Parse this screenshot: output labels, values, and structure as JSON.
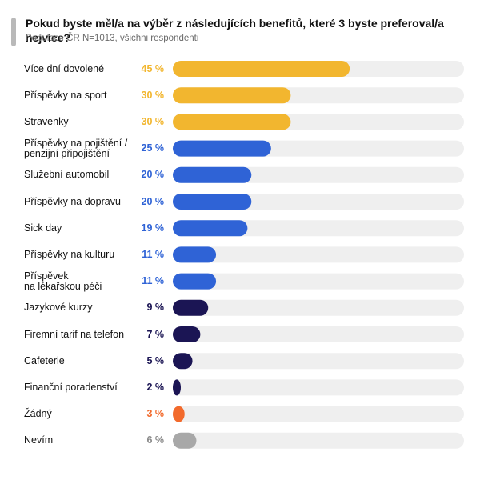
{
  "header": {
    "title": "Pokud byste měl/a na výběr z následujících benefitů, které 3 byste preferoval/a nejvíce?",
    "subtitle": "Populace ČR N=1013, všichni respondenti"
  },
  "colors": {
    "track": "#efefef",
    "yellow": "#f2b62f",
    "blue": "#2f63d6",
    "navy": "#1b1554",
    "orange": "#f26a2c",
    "gray": "#a8a8a8"
  },
  "chart_data": {
    "type": "bar",
    "orientation": "horizontal",
    "xlim": [
      0,
      100
    ],
    "categories": [
      "Více dní dovolené",
      "Příspěvky na sport",
      "Stravenky",
      "Příspěvky na pojištění / penzijní připojištění",
      "Služební automobil",
      "Příspěvky na dopravu",
      "Sick day",
      "Příspěvky na kulturu",
      "Příspěvek na lékařskou péči",
      "Jazykové kurzy",
      "Firemní tarif na telefon",
      "Cafeterie",
      "Finanční poradenství",
      "Žádný",
      "Nevím"
    ],
    "label_lines": [
      [
        "Více dní dovolené"
      ],
      [
        "Příspěvky na sport"
      ],
      [
        "Stravenky"
      ],
      [
        "Příspěvky na pojištění /",
        "penzijní připojištění"
      ],
      [
        "Služební automobil"
      ],
      [
        "Příspěvky na dopravu"
      ],
      [
        "Sick day"
      ],
      [
        "Příspěvky na kulturu"
      ],
      [
        "Příspěvek",
        "na lékařskou péči"
      ],
      [
        "Jazykové kurzy"
      ],
      [
        "Firemní tarif na telefon"
      ],
      [
        "Cafeterie"
      ],
      [
        "Finanční poradenství"
      ],
      [
        "Žádný"
      ],
      [
        "Nevím"
      ]
    ],
    "values": [
      45,
      30,
      30,
      25,
      20,
      20,
      19,
      11,
      11,
      9,
      7,
      5,
      2,
      3,
      6
    ],
    "value_labels": [
      "45 %",
      "30 %",
      "30 %",
      "25 %",
      "20 %",
      "20 %",
      "19 %",
      "11 %",
      "11 %",
      "9 %",
      "7 %",
      "5 %",
      "2 %",
      "3 %",
      "6 %"
    ],
    "bar_colors": [
      "#f2b62f",
      "#f2b62f",
      "#f2b62f",
      "#2f63d6",
      "#2f63d6",
      "#2f63d6",
      "#2f63d6",
      "#2f63d6",
      "#2f63d6",
      "#1b1554",
      "#1b1554",
      "#1b1554",
      "#1b1554",
      "#f26a2c",
      "#a8a8a8"
    ],
    "value_colors": [
      "#f2b62f",
      "#f2b62f",
      "#f2b62f",
      "#2f63d6",
      "#2f63d6",
      "#2f63d6",
      "#2f63d6",
      "#2f63d6",
      "#2f63d6",
      "#1b1554",
      "#1b1554",
      "#1b1554",
      "#1b1554",
      "#f26a2c",
      "#8a8a8a"
    ]
  }
}
